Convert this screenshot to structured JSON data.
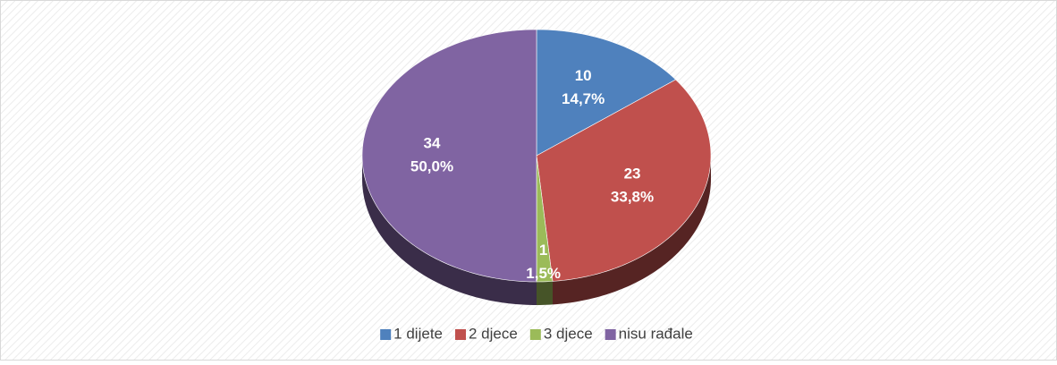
{
  "chart_data": {
    "type": "pie3d",
    "categories": [
      "1 dijete",
      "2 djece",
      "3 djece",
      "nisu rađale"
    ],
    "values": [
      10,
      23,
      1,
      34
    ],
    "percent_labels": [
      "14,7%",
      "33,8%",
      "1,5%",
      "50,0%"
    ],
    "colors": [
      "#4f81bd",
      "#c0504d",
      "#9bbb59",
      "#8064a2"
    ],
    "legend": "bottom"
  }
}
